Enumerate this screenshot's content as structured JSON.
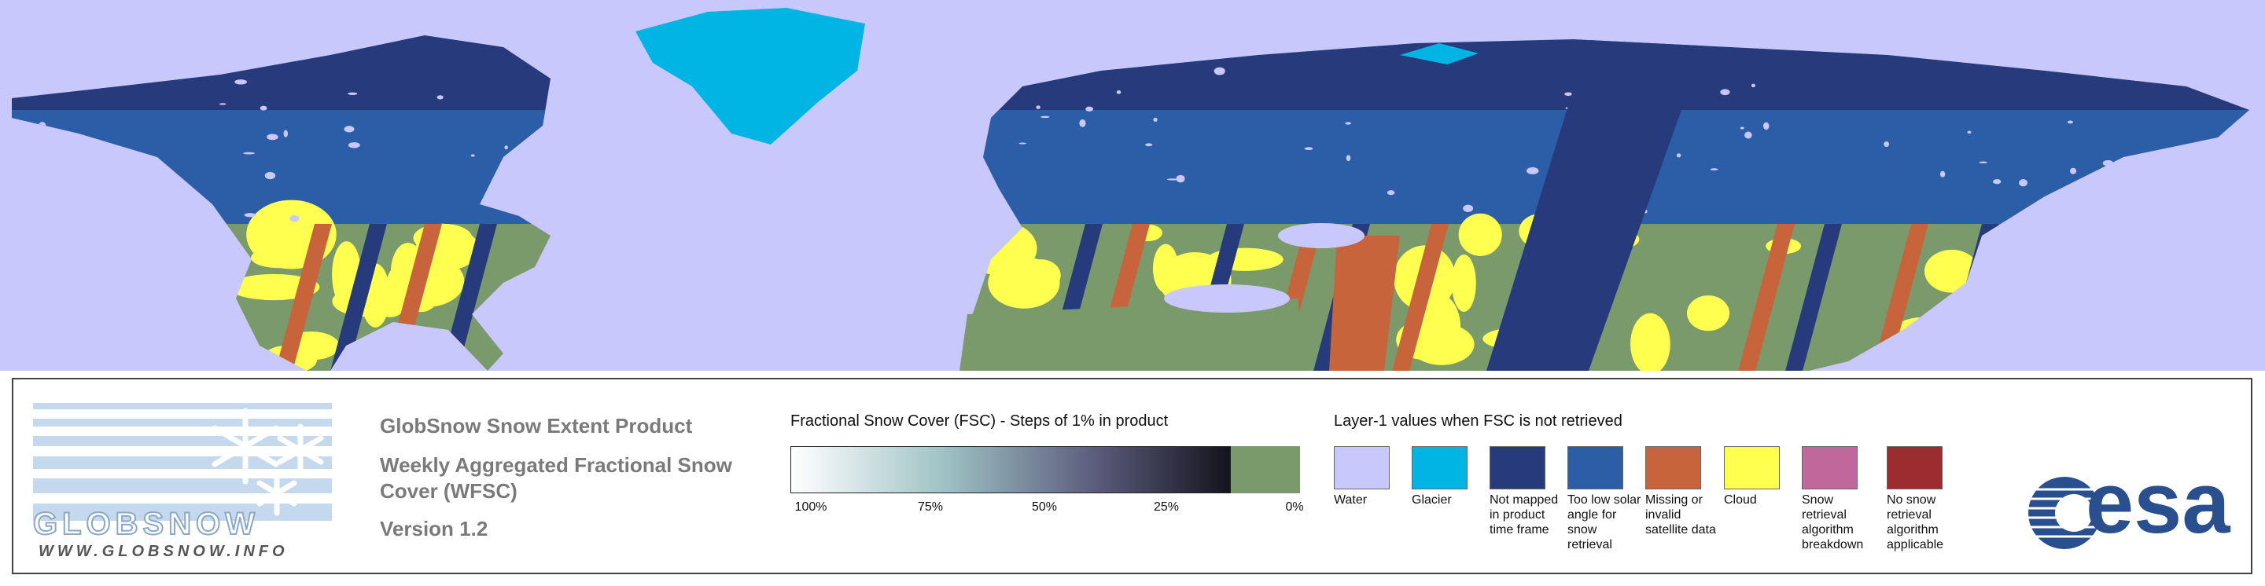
{
  "logo": {
    "name": "GLOBSNOW",
    "url": "WWW.GLOBSNOW.INFO"
  },
  "product": {
    "title": "GlobSnow Snow Extent Product",
    "subtitle": "Weekly Aggregated Fractional Snow Cover (WFSC)",
    "version": "Version 1.2"
  },
  "fsc_scale": {
    "title": "Fractional Snow Cover (FSC) - Steps of 1% in product",
    "ticks": [
      "100%",
      "75%",
      "50%",
      "25%",
      "0%"
    ],
    "no_snow_color": "#7a9a6c"
  },
  "layer1": {
    "title": "Layer-1 values when FSC is not retrieved",
    "items": [
      {
        "label": "Water",
        "color": "#c8c8fc"
      },
      {
        "label": "Glacier",
        "color": "#00b4e4"
      },
      {
        "label": "Not mapped in product time frame",
        "color": "#263a7c"
      },
      {
        "label": "Too low solar angle for snow retrieval",
        "color": "#2c5ea8"
      },
      {
        "label": "Missing or invalid satellite data",
        "color": "#c8643c"
      },
      {
        "label": "Cloud",
        "color": "#ffff50"
      },
      {
        "label": "Snow retrieval algorithm breakdown",
        "color": "#c0689c"
      },
      {
        "label": "No snow retrieval algorithm applicable",
        "color": "#9c2c30"
      }
    ]
  },
  "esa": "esa"
}
